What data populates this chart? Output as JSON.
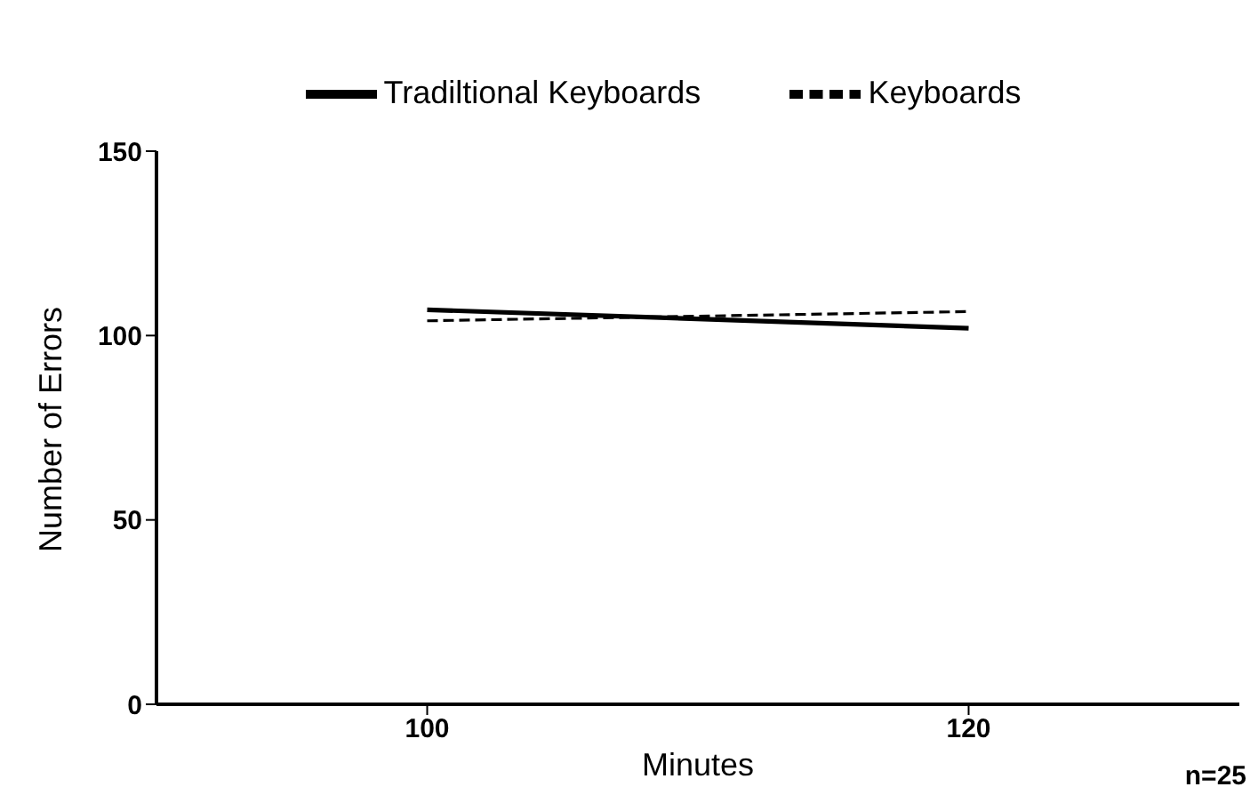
{
  "chart_data": {
    "type": "line",
    "xlabel": "Minutes",
    "ylabel": "Number of Errors",
    "xlim": [
      90,
      130
    ],
    "xticks": [
      100,
      120
    ],
    "ylim": [
      0,
      150
    ],
    "yticks": [
      0,
      50,
      100,
      150
    ],
    "grid": false,
    "x": [
      100,
      120
    ],
    "legend": "top",
    "marker": "none",
    "annotations": [
      "n=25"
    ],
    "series": [
      {
        "name": "Tradiltional Keyboards",
        "color": "#000000",
        "line_style": "solid",
        "values": [
          107,
          102
        ]
      },
      {
        "name": "Keyboards",
        "color": "#000000",
        "line_style": "dashed",
        "values": [
          104,
          106.5
        ]
      }
    ]
  }
}
